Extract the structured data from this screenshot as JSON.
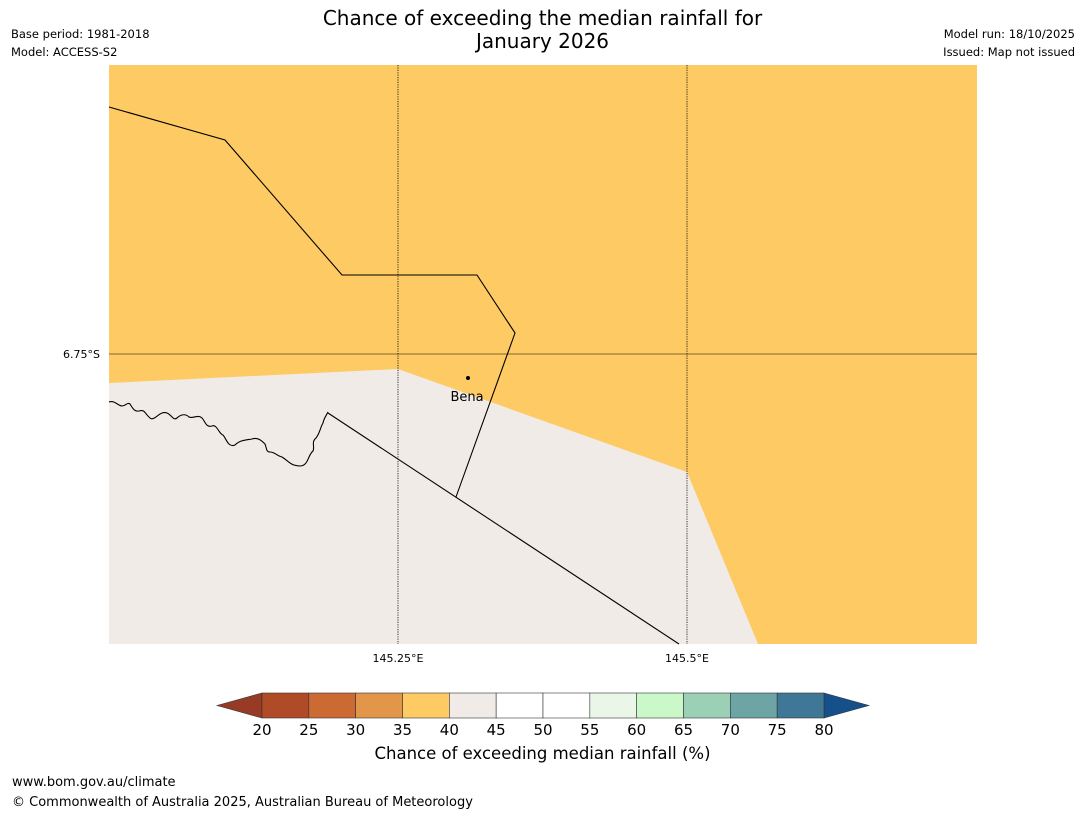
{
  "title": {
    "line1": "Chance of exceeding the median rainfall for",
    "line2": "January 2026"
  },
  "meta": {
    "base_period": "Base period: 1981-2018",
    "model": "Model: ACCESS-S2",
    "model_run": "Model run: 18/10/2025",
    "issued": "Issued: Map not issued"
  },
  "map": {
    "lat_label": "6.75°S",
    "lon_labels": [
      "145.25°E",
      "145.5°E"
    ],
    "place_label": "Bena",
    "colors": {
      "above": "#fdca64",
      "near": "#f0ebe6"
    }
  },
  "colorbar": {
    "label": "Chance of exceeding median rainfall (%)",
    "ticks": [
      "20",
      "25",
      "30",
      "35",
      "40",
      "45",
      "50",
      "55",
      "60",
      "65",
      "70",
      "75",
      "80"
    ],
    "low_color": "#973b26",
    "high_color": "#16508a",
    "colors": [
      "#b04b27",
      "#cc6a34",
      "#e2964a",
      "#fdca64",
      "#f0ebe6",
      "#ffffff",
      "#ffffff",
      "#eaf7e8",
      "#caf8c8",
      "#9bcfb6",
      "#6da5a5",
      "#3f7797"
    ]
  },
  "footer": {
    "url": "www.bom.gov.au/climate",
    "copyright": "© Commonwealth of Australia 2025, Australian Bureau of Meteorology"
  }
}
